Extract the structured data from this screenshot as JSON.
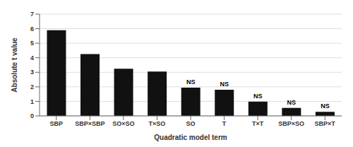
{
  "chart_data": {
    "type": "bar",
    "categories": [
      "SBP",
      "SBP×SBP",
      "SO×SO",
      "T×SO",
      "SO",
      "T",
      "T×T",
      "SBP×SO",
      "SBP×T"
    ],
    "values": [
      5.9,
      4.25,
      3.25,
      3.05,
      1.95,
      1.8,
      0.98,
      0.55,
      0.28
    ],
    "color": "#111111",
    "xlabel": "Quadratic model term",
    "ylabel": "Absolute t value",
    "ylim": [
      0,
      7
    ],
    "yticks": [
      0,
      1,
      2,
      3,
      4,
      5,
      6,
      7
    ],
    "grid": true,
    "annotations": [
      {
        "category": "SO",
        "text": "NS"
      },
      {
        "category": "T",
        "text": "NS"
      },
      {
        "category": "T×T",
        "text": "NS"
      },
      {
        "category": "SBP×SO",
        "text": "NS"
      },
      {
        "category": "SBP×T",
        "text": "NS"
      }
    ]
  }
}
